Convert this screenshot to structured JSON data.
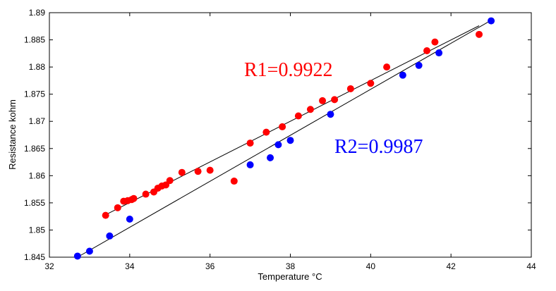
{
  "chart_data": {
    "type": "scatter",
    "xlabel": "Temperature °C",
    "ylabel": "Resistance kohm",
    "xlim": [
      32,
      44
    ],
    "ylim": [
      1.845,
      1.89
    ],
    "grid": false,
    "x_ticks": [
      "32",
      "34",
      "36",
      "38",
      "40",
      "42",
      "44"
    ],
    "y_ticks": [
      "1.845",
      "1.85",
      "1.855",
      "1.86",
      "1.865",
      "1.87",
      "1.875",
      "1.88",
      "1.885",
      "1.89"
    ],
    "annotations": [
      {
        "text": "R1=0.9922",
        "color": "#ff0000"
      },
      {
        "text": "R2=0.9987",
        "color": "#0000ff"
      }
    ],
    "series": [
      {
        "color": "#ff0000",
        "points": [
          [
            33.4,
            1.8527
          ],
          [
            33.7,
            1.8541
          ],
          [
            33.85,
            1.8553
          ],
          [
            33.95,
            1.8554
          ],
          [
            34.05,
            1.8556
          ],
          [
            34.1,
            1.8558
          ],
          [
            34.4,
            1.8566
          ],
          [
            34.6,
            1.857
          ],
          [
            34.7,
            1.8577
          ],
          [
            34.8,
            1.8581
          ],
          [
            34.9,
            1.8583
          ],
          [
            35.0,
            1.8591
          ],
          [
            35.3,
            1.8606
          ],
          [
            35.7,
            1.8608
          ],
          [
            36.0,
            1.861
          ],
          [
            36.6,
            1.859
          ],
          [
            37.0,
            1.866
          ],
          [
            37.4,
            1.868
          ],
          [
            37.8,
            1.869
          ],
          [
            38.2,
            1.871
          ],
          [
            38.5,
            1.8722
          ],
          [
            38.8,
            1.8738
          ],
          [
            39.1,
            1.874
          ],
          [
            39.5,
            1.876
          ],
          [
            40.0,
            1.877
          ],
          [
            40.4,
            1.88
          ],
          [
            41.4,
            1.883
          ],
          [
            41.6,
            1.8846
          ],
          [
            42.7,
            1.886
          ]
        ],
        "fit": [
          [
            33.4,
            1.8528
          ],
          [
            42.7,
            1.8876
          ]
        ]
      },
      {
        "color": "#0000ff",
        "points": [
          [
            32.7,
            1.8452
          ],
          [
            33.0,
            1.8461
          ],
          [
            33.5,
            1.8489
          ],
          [
            34.0,
            1.852
          ],
          [
            37.0,
            1.862
          ],
          [
            37.5,
            1.8633
          ],
          [
            37.7,
            1.8657
          ],
          [
            38.0,
            1.8665
          ],
          [
            39.0,
            1.8713
          ],
          [
            40.8,
            1.8785
          ],
          [
            41.2,
            1.8803
          ],
          [
            41.7,
            1.8826
          ],
          [
            43.0,
            1.8885
          ]
        ],
        "fit": [
          [
            32.7,
            1.845
          ],
          [
            43.0,
            1.8886
          ]
        ]
      }
    ]
  }
}
